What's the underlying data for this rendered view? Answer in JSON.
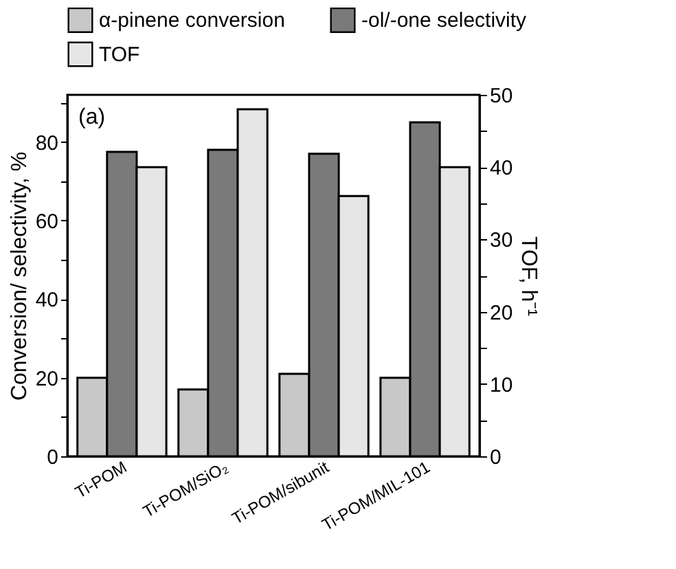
{
  "chart_data": {
    "type": "bar",
    "categories": [
      "Ti-POM",
      "Ti-POM/SiO₂",
      "Ti-POM/sibunit",
      "Ti-POM/MIL-101"
    ],
    "series": [
      {
        "name": "α-pinene conversion",
        "color": "#c8c8c8",
        "values": [
          20,
          17,
          21,
          20
        ]
      },
      {
        "name": "-ol/-one selectivity",
        "color": "#7a7a7a",
        "values": [
          77.5,
          78,
          77,
          85
        ]
      },
      {
        "name": "TOF",
        "color": "#e6e6e6",
        "values": [
          40,
          48,
          36,
          40
        ],
        "axis": "y2"
      }
    ],
    "ylabel": "Conversion/ selectivity, %",
    "y2label": "TOF, h⁻¹",
    "ylim": [
      0,
      92
    ],
    "yticks": [
      0,
      {
        "value": 10,
        "label": null
      },
      20,
      {
        "value": 30,
        "label": null
      },
      40,
      {
        "value": 50,
        "label": null
      },
      60,
      {
        "value": 70,
        "label": null
      },
      80,
      {
        "value": 90,
        "label": null
      }
    ],
    "y2lim": [
      0,
      50
    ],
    "y2ticks": [
      0,
      {
        "value": 5,
        "label": null
      },
      10,
      {
        "value": 15,
        "label": null
      },
      20,
      {
        "value": 25,
        "label": null
      },
      30,
      {
        "value": 35,
        "label": null
      },
      40,
      {
        "value": 45,
        "label": null
      },
      50
    ],
    "annotations": [
      "(a)"
    ],
    "legend": "top",
    "grid": false
  }
}
